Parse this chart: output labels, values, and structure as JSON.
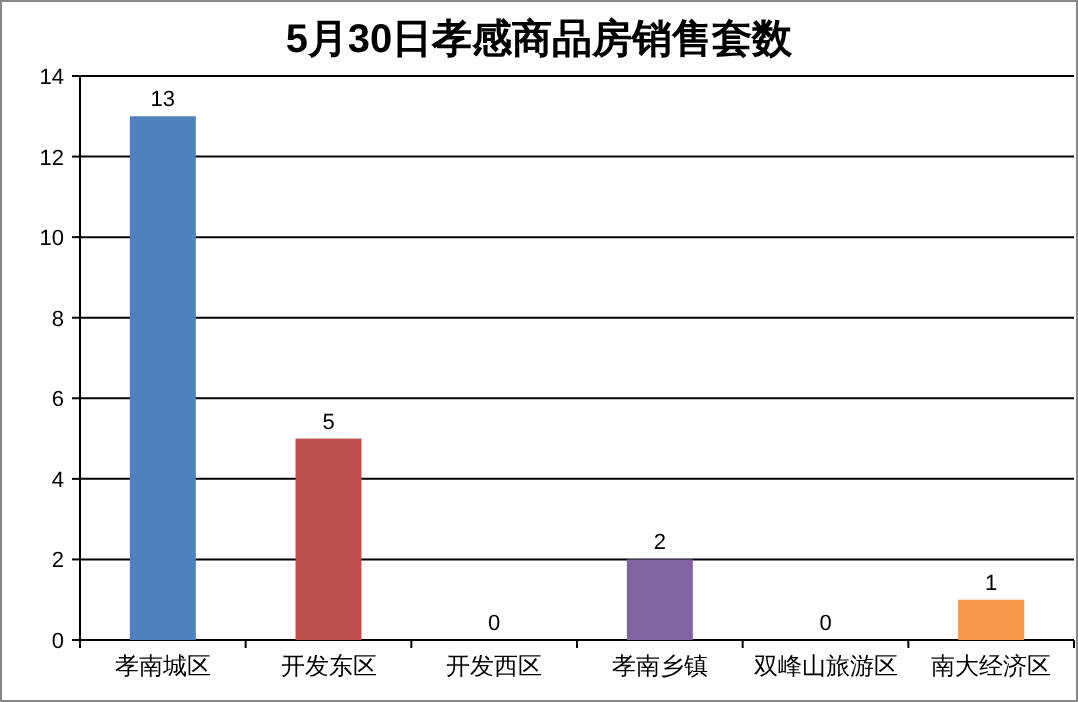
{
  "chart_data": {
    "type": "bar",
    "title": "5月30日孝感商品房销售套数",
    "categories": [
      "孝南城区",
      "开发东区",
      "开发西区",
      "孝南乡镇",
      "双峰山旅游区",
      "南大经济区"
    ],
    "values": [
      13,
      5,
      0,
      2,
      0,
      1
    ],
    "colors": [
      "#4f81bd",
      "#c0504d",
      "#9bbb59",
      "#8064a2",
      "#4bacc6",
      "#f79646"
    ],
    "ylim": [
      0,
      14
    ],
    "yticks": [
      0,
      2,
      4,
      6,
      8,
      10,
      12,
      14
    ],
    "grid": "y",
    "data_labels": true
  }
}
